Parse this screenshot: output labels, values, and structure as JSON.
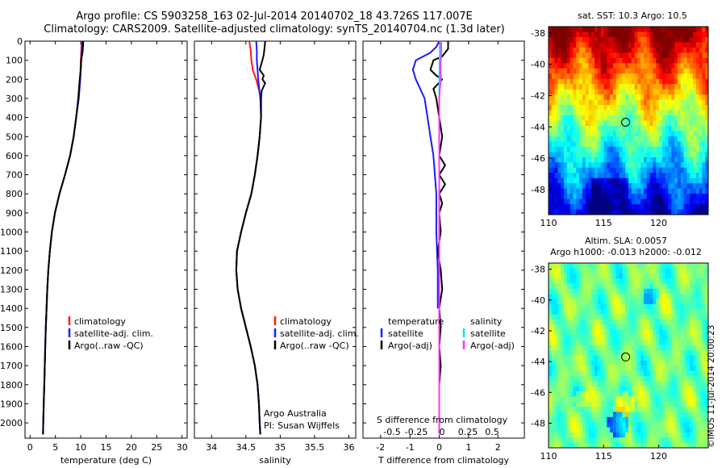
{
  "header": {
    "line1": "Argo profile: CS 5903258_163 02-Jul-2014 20140702_18 43.726S 117.007E",
    "line2": "Climatology: CARS2009. Satellite-adjusted climatology: synTS_20140704.nc (1.3d later)"
  },
  "side_label": "©IMOS 11-Jul-2014 20:00:23",
  "colors": {
    "climatology": "#ff1a1a",
    "satellite": "#1a1aff",
    "argo": "#000000",
    "sat_salinity": "#00e6e6",
    "argo_salinity": "#ff33ff"
  },
  "chart_data": [
    {
      "type": "line",
      "id": "temperature",
      "xlabel": "temperature (deg C)",
      "ylabel": "",
      "xlim": [
        -1,
        31
      ],
      "ylim": [
        2080,
        0
      ],
      "xticks": [
        0,
        5,
        10,
        15,
        20,
        25,
        30
      ],
      "yticks": [
        0,
        100,
        200,
        300,
        400,
        500,
        600,
        700,
        800,
        900,
        1000,
        1100,
        1200,
        1300,
        1400,
        1500,
        1600,
        1700,
        1800,
        1900,
        2000
      ],
      "legend": {
        "position": "lower-middle",
        "entries": [
          "climatology",
          "satellite-adj. clim.",
          "Argo(..raw -QC)"
        ]
      },
      "series": [
        {
          "name": "climatology",
          "color": "climatology",
          "depth": [
            0,
            100,
            200,
            300,
            400,
            500,
            600,
            700,
            800,
            900,
            1000,
            1100,
            1200,
            1300,
            1400,
            1500,
            1600,
            1700,
            1800,
            1900,
            2000,
            2060
          ],
          "values": [
            10.2,
            10.0,
            9.9,
            9.6,
            9.1,
            8.6,
            7.9,
            6.9,
            5.8,
            4.9,
            4.3,
            3.9,
            3.6,
            3.4,
            3.25,
            3.1,
            3.0,
            2.9,
            2.8,
            2.7,
            2.6,
            2.55
          ]
        },
        {
          "name": "satellite-adj. clim.",
          "color": "satellite",
          "depth": [
            0,
            100,
            200,
            300,
            400,
            500,
            600,
            700,
            800,
            900,
            1000,
            1100,
            1200,
            1300,
            1400,
            1500,
            1600,
            1700,
            1800,
            1900,
            2000,
            2060
          ],
          "values": [
            10.3,
            10.1,
            9.9,
            9.6,
            9.1,
            8.6,
            7.9,
            6.9,
            5.8,
            4.9,
            4.3,
            3.9,
            3.6,
            3.4,
            3.25,
            3.1,
            3.0,
            2.9,
            2.8,
            2.7,
            2.6,
            2.55
          ]
        },
        {
          "name": "Argo(..raw -QC)",
          "color": "argo",
          "depth": [
            0,
            50,
            100,
            150,
            200,
            300,
            400,
            500,
            600,
            700,
            800,
            900,
            1000,
            1100,
            1200,
            1300,
            1400,
            1500,
            1600,
            1700,
            1800,
            1900,
            2000,
            2060
          ],
          "values": [
            10.5,
            10.4,
            10.1,
            10.0,
            9.8,
            9.5,
            9.1,
            8.6,
            7.9,
            6.9,
            5.8,
            4.9,
            4.3,
            3.9,
            3.6,
            3.4,
            3.25,
            3.1,
            3.0,
            2.9,
            2.8,
            2.7,
            2.6,
            2.55
          ]
        }
      ]
    },
    {
      "type": "line",
      "id": "salinity",
      "xlabel": "salinity",
      "ylabel": "",
      "xlim": [
        33.75,
        36.1
      ],
      "ylim": [
        2080,
        0
      ],
      "xticks": [
        34,
        34.5,
        35,
        35.5,
        36
      ],
      "legend": {
        "position": "lower-middle",
        "entries": [
          "climatology",
          "satellite-adj. clim.",
          "Argo(..raw -QC)"
        ]
      },
      "annotation": {
        "line1": "Argo Australia",
        "line2": "PI: Susan Wijffels"
      },
      "series": [
        {
          "name": "climatology",
          "color": "climatology",
          "depth": [
            0,
            50,
            100,
            150,
            200,
            300,
            400,
            500,
            600,
            700,
            800,
            900,
            1000,
            1100,
            1200,
            1300,
            1400,
            1500,
            1600,
            1700,
            1800,
            1900,
            2000,
            2060
          ],
          "values": [
            34.55,
            34.57,
            34.58,
            34.6,
            34.65,
            34.72,
            34.72,
            34.7,
            34.67,
            34.63,
            34.58,
            34.5,
            34.43,
            34.37,
            34.36,
            34.38,
            34.43,
            34.5,
            34.57,
            34.63,
            34.67,
            34.69,
            34.7,
            34.71
          ]
        },
        {
          "name": "satellite-adj. clim.",
          "color": "satellite",
          "depth": [
            0,
            50,
            100,
            150,
            200,
            300,
            400,
            500,
            600,
            700,
            800,
            900,
            1000,
            1100,
            1200,
            1300,
            1400,
            1500,
            1600,
            1700,
            1800,
            1900,
            2000,
            2060
          ],
          "values": [
            34.65,
            34.66,
            34.66,
            34.67,
            34.68,
            34.71,
            34.72,
            34.7,
            34.67,
            34.63,
            34.58,
            34.5,
            34.43,
            34.37,
            34.36,
            34.38,
            34.43,
            34.5,
            34.57,
            34.63,
            34.67,
            34.69,
            34.7,
            34.71
          ]
        },
        {
          "name": "Argo(..raw -QC)",
          "color": "argo",
          "depth": [
            0,
            40,
            70,
            100,
            150,
            180,
            200,
            220,
            260,
            300,
            400,
            500,
            600,
            700,
            800,
            900,
            1000,
            1100,
            1200,
            1300,
            1400,
            1500,
            1600,
            1700,
            1800,
            1900,
            2000,
            2060
          ],
          "values": [
            34.78,
            34.77,
            34.76,
            34.74,
            34.7,
            34.76,
            34.74,
            34.78,
            34.73,
            34.72,
            34.72,
            34.7,
            34.67,
            34.63,
            34.58,
            34.5,
            34.43,
            34.37,
            34.36,
            34.38,
            34.43,
            34.5,
            34.57,
            34.63,
            34.67,
            34.69,
            34.7,
            34.71
          ]
        }
      ]
    },
    {
      "type": "line",
      "id": "difference",
      "xlabel": "T difference from climatology",
      "ylabel": "",
      "xlim": [
        -2.6,
        2.9
      ],
      "ylim": [
        2080,
        0
      ],
      "xticks": [
        -2,
        -1,
        0,
        1,
        2
      ],
      "top_axis": {
        "label": "S difference from climatology",
        "ticks": [
          "-0.5",
          "-0.25",
          "0",
          "0.25",
          "0.5"
        ]
      },
      "legend": {
        "position": "lower-middle",
        "temperature_header": "temperature",
        "salinity_header": "salinity",
        "entries": [
          "satellite",
          "Argo(-adj)",
          "satellite",
          "Argo(-adj)"
        ]
      },
      "series": [
        {
          "name": "T satellite",
          "color": "satellite",
          "depth": [
            0,
            30,
            60,
            100,
            150,
            200,
            300,
            400,
            500,
            600,
            700,
            800,
            1000,
            1200,
            1400
          ],
          "values": [
            0.0,
            -0.1,
            -0.3,
            -0.8,
            -0.9,
            -0.8,
            -0.5,
            -0.4,
            -0.3,
            -0.2,
            -0.15,
            -0.1,
            -0.1,
            -0.05,
            -0.05
          ]
        },
        {
          "name": "T Argo(-adj)",
          "color": "argo",
          "depth": [
            0,
            40,
            80,
            100,
            150,
            180,
            200,
            250,
            300,
            400,
            500,
            600,
            650,
            700,
            750,
            800,
            850,
            900,
            1000,
            1100,
            1200,
            1300,
            1400,
            1500,
            1600,
            1700,
            1800,
            1900,
            2000,
            2060
          ],
          "values": [
            0.3,
            0.3,
            0.1,
            -0.2,
            -0.3,
            -0.1,
            0.1,
            -0.2,
            -0.1,
            0.0,
            0.1,
            0.0,
            0.2,
            0.0,
            0.2,
            0.0,
            0.1,
            0.0,
            0.05,
            -0.05,
            0.05,
            0.1,
            0.0,
            0.05,
            0.0,
            0.05,
            0.0,
            0.0,
            0.0,
            0.0
          ]
        },
        {
          "name": "S satellite",
          "color": "sat_salinity",
          "depth": [
            0,
            30,
            60,
            100,
            200,
            400,
            600,
            800,
            1000,
            1500,
            2060
          ],
          "values": [
            0.03,
            0.015,
            0.02,
            0.01,
            0.005,
            0.0,
            0.0,
            0.0,
            0.0,
            0.0,
            0.0
          ]
        },
        {
          "name": "S Argo(-adj)",
          "color": "argo_salinity",
          "depth": [
            0,
            40,
            70,
            100,
            150,
            200,
            250,
            300,
            400,
            600,
            800,
            1000,
            1200,
            1400,
            1600,
            1800,
            2060
          ],
          "values": [
            0.06,
            0.07,
            0.07,
            0.05,
            0.04,
            0.06,
            0.02,
            0.0,
            0.0,
            0.0,
            0.0,
            0.0,
            0.0,
            0.0,
            0.0,
            0.0,
            0.0
          ]
        }
      ]
    },
    {
      "type": "heatmap",
      "id": "sst_map",
      "title": "sat. SST: 10.3  Argo: 10.5",
      "xlim": [
        110,
        124.5
      ],
      "ylim": [
        -49.6,
        -37.6
      ],
      "xticks": [
        110,
        115,
        120
      ],
      "yticks": [
        -38,
        -40,
        -42,
        -44,
        -46,
        -48
      ],
      "marker": {
        "lon": 117.0,
        "lat": -43.7
      }
    },
    {
      "type": "heatmap",
      "id": "sla_map",
      "title": "Altim. SLA: 0.0057",
      "subtitle": "Argo h1000: -0.013  h2000: -0.012",
      "xlim": [
        110,
        124.5
      ],
      "ylim": [
        -49.6,
        -37.6
      ],
      "xticks": [
        110,
        115,
        120
      ],
      "yticks": [
        -38,
        -40,
        -42,
        -44,
        -46,
        -48
      ],
      "marker": {
        "lon": 117.0,
        "lat": -43.7
      }
    }
  ]
}
